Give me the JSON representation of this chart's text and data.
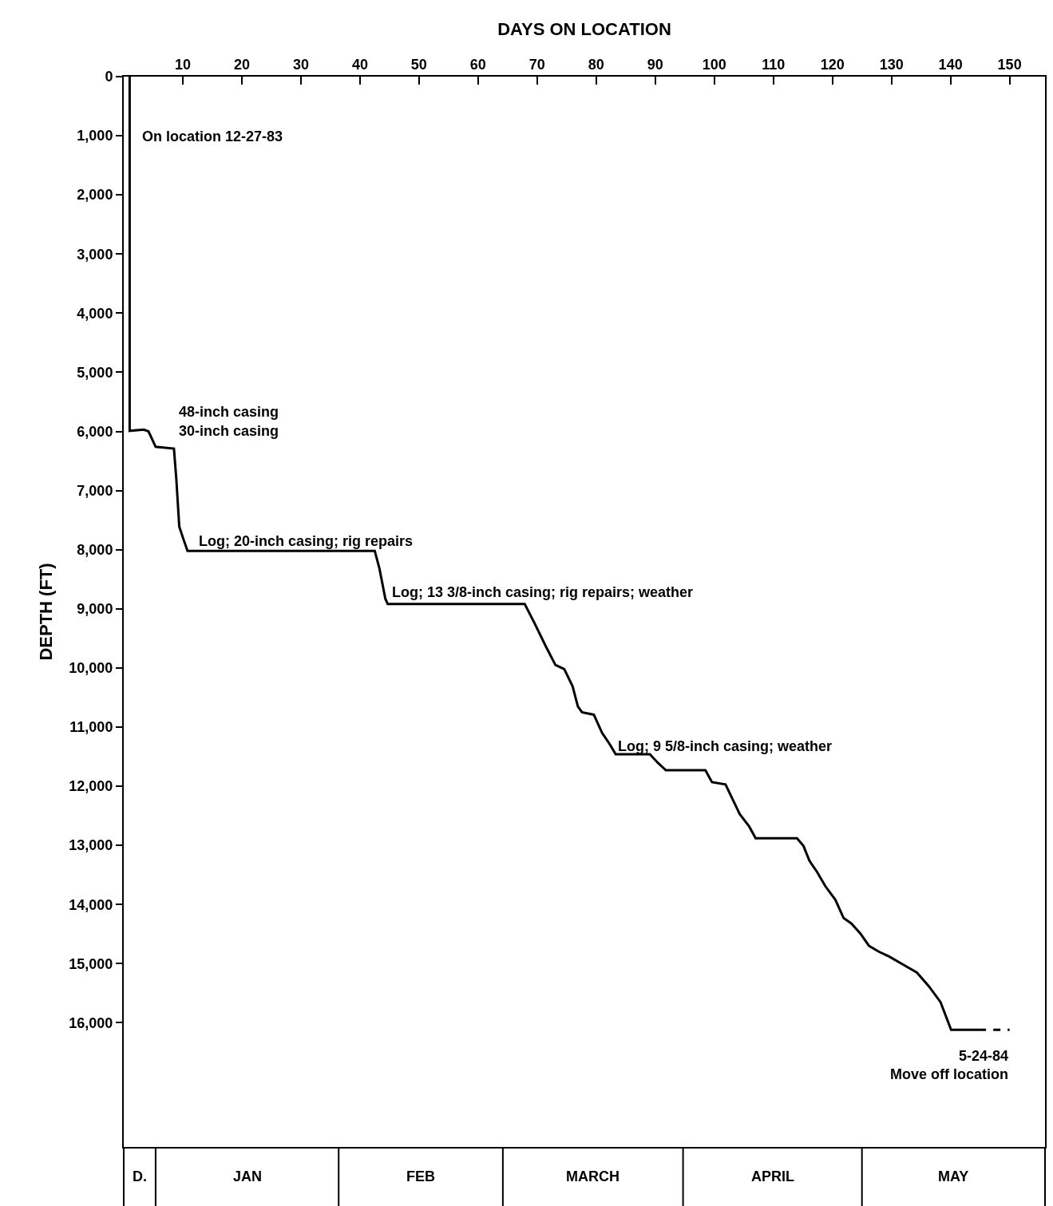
{
  "chart_data": {
    "type": "line",
    "xlabel": "DAYS ON LOCATION",
    "ylabel": "DEPTH (FT)",
    "xlim": [
      0,
      156
    ],
    "xticks": [
      10,
      20,
      30,
      40,
      50,
      60,
      70,
      80,
      90,
      100,
      110,
      120,
      130,
      140,
      150
    ],
    "ylim": [
      18100,
      0
    ],
    "yticks": [
      0,
      {
        "value": 1000,
        "label": "1,000"
      },
      {
        "value": 2000,
        "label": "2,000"
      },
      {
        "value": 3000,
        "label": "3,000"
      },
      {
        "value": 4000,
        "label": "4,000"
      },
      {
        "value": 5000,
        "label": "5,000"
      },
      {
        "value": 6000,
        "label": "6,000"
      },
      {
        "value": 7000,
        "label": "7,000"
      },
      {
        "value": 8000,
        "label": "8,000"
      },
      {
        "value": 9000,
        "label": "9,000"
      },
      {
        "value": 10000,
        "label": "10,000"
      },
      {
        "value": 11000,
        "label": "11,000"
      },
      {
        "value": 12000,
        "label": "12,000"
      },
      {
        "value": 13000,
        "label": "13,000"
      },
      {
        "value": 14000,
        "label": "14,000"
      },
      {
        "value": 15000,
        "label": "15,000"
      },
      {
        "value": 16000,
        "label": "16,000"
      }
    ],
    "legend": false,
    "marker": "none",
    "series": [
      {
        "color": "#000000",
        "line_style": "solid",
        "x": [
          1,
          1,
          3.4,
          4.2,
          5.4,
          8.5,
          8.9,
          9.4,
          10.1,
          10.8,
          42.5,
          43.3,
          44.3,
          44.7,
          67.9,
          69.5,
          71.5,
          73.1,
          74.6,
          76,
          76.9,
          77.6,
          79.6,
          81,
          82.3,
          83.3,
          89.1,
          90.4,
          91.8,
          98.5,
          99.6,
          101.9,
          103,
          104.3,
          105.9,
          107,
          114,
          115.1,
          116.1,
          117.4,
          118.8,
          120.5,
          121.9,
          123.2,
          124.8,
          126.2,
          127.9,
          129.6,
          132.9,
          134.3,
          136.3,
          138.3,
          140.1,
          144.8
        ],
        "values": [
          0,
          5990,
          5970,
          6000,
          6260,
          6290,
          6800,
          7610,
          7820,
          8020,
          8020,
          8320,
          8830,
          8920,
          8920,
          9230,
          9640,
          9950,
          10020,
          10310,
          10650,
          10750,
          10790,
          11100,
          11290,
          11460,
          11460,
          11600,
          11730,
          11730,
          11930,
          11970,
          12200,
          12470,
          12680,
          12880,
          12880,
          13010,
          13260,
          13450,
          13690,
          13920,
          14230,
          14320,
          14500,
          14700,
          14800,
          14880,
          15070,
          15150,
          15380,
          15650,
          16120,
          16120
        ]
      },
      {
        "color": "#000000",
        "line_style": "dashed",
        "x": [
          144.8,
          150
        ],
        "values": [
          16120,
          16120
        ]
      }
    ],
    "annotations": [
      "On location 12-27-83",
      "48-inch casing",
      "30-inch casing",
      "Log; 20-inch casing; rig repairs",
      "Log; 13 3/8-inch casing; rig repairs; weather",
      "Log; 9 5/8-inch casing; weather",
      "5-24-84",
      "Move off location",
      "D.",
      "JAN",
      "FEB",
      "MARCH",
      "APRIL",
      "MAY"
    ]
  }
}
